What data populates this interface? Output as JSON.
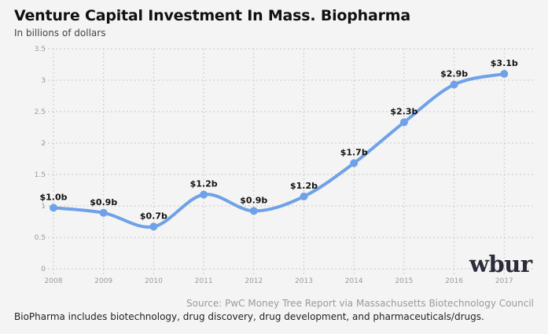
{
  "title": "Venture Capital Investment In Mass. Biopharma",
  "subtitle": "In billions of dollars",
  "logo_text": "wbur",
  "source": "Source: PwC Money Tree Report via Massachusetts Biotechnology Council",
  "note": "BioPharma includes biotechnology, drug discovery, drug development, and pharmaceuticals/drugs.",
  "colors": {
    "line": "#6fa1e8",
    "background": "#f4f4f4",
    "grid": "#c8c8c8"
  },
  "chart_data": {
    "type": "line",
    "title": "Venture Capital Investment In Mass. Biopharma",
    "subtitle": "In billions of dollars",
    "xlabel": "",
    "ylabel": "",
    "x": [
      "2008",
      "2009",
      "2010",
      "2011",
      "2012",
      "2013",
      "2014",
      "2015",
      "2016",
      "2017"
    ],
    "series": [
      {
        "values": [
          0.97,
          0.89,
          0.67,
          1.18,
          0.92,
          1.15,
          1.68,
          2.33,
          2.93,
          3.1
        ],
        "labels": [
          "$1.0b",
          "$0.9b",
          "$0.7b",
          "$1.2b",
          "$0.9b",
          "$1.2b",
          "$1.7b",
          "$2.3b",
          "$2.9b",
          "$3.1b"
        ]
      }
    ],
    "ylim": [
      0,
      3.5
    ],
    "yticks": [
      "0",
      "0.5",
      "1",
      "1.5",
      "2",
      "2.5",
      "3",
      "3.5"
    ],
    "grid": true,
    "legend": "none"
  }
}
